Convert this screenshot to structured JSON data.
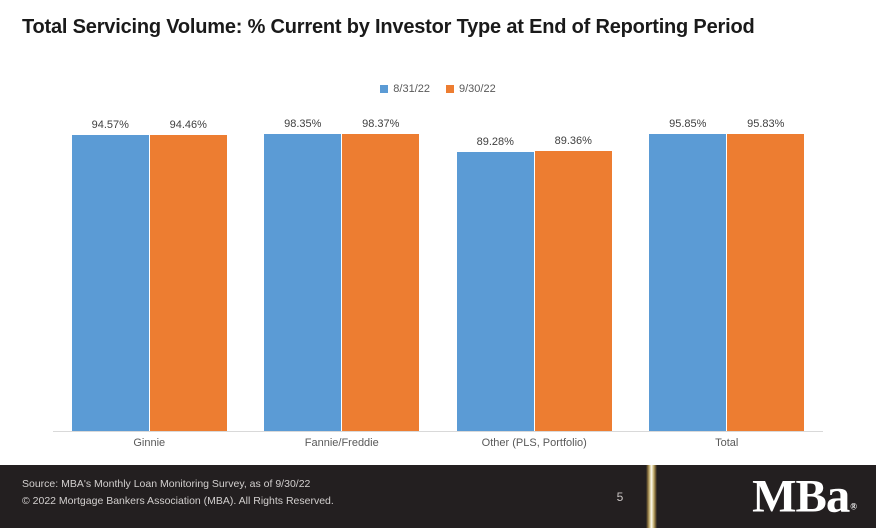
{
  "title": "Total Servicing Volume: % Current by Investor Type at End of Reporting Period",
  "chart_data": {
    "type": "bar",
    "title": "Total Servicing Volume: % Current by Investor Type at End of Reporting Period",
    "categories": [
      "Ginnie",
      "Fannie/Freddie",
      "Other (PLS, Portfolio)",
      "Total"
    ],
    "series": [
      {
        "name": "8/31/22",
        "color": "#5B9BD5",
        "values": [
          94.57,
          98.35,
          89.28,
          95.85
        ]
      },
      {
        "name": "9/30/22",
        "color": "#ED7D31",
        "values": [
          94.46,
          98.37,
          89.36,
          95.83
        ]
      }
    ],
    "data_labels": {
      "8/31/22": [
        "94.57%",
        "98.35%",
        "89.28%",
        "95.85%"
      ],
      "9/30/22": [
        "94.46%",
        "98.37%",
        "89.36%",
        "95.83%"
      ]
    },
    "value_suffix": "%",
    "xlabel": "",
    "ylabel": "",
    "ylim": [
      0,
      100
    ],
    "grid": false,
    "axes_visible": false,
    "legend_position": "top-center"
  },
  "colors": {
    "series_1_blue": "#5B9BD5",
    "series_2_orange": "#ED7D31",
    "footer_background": "#231F20",
    "divider_gold": "#8A713D",
    "divider_gold_light": "#C9B77A",
    "divider_center": "#FDFAF0"
  },
  "footer": {
    "source_line1": "Source: MBA's Monthly Loan Monitoring Survey, as of 9/30/22",
    "source_line2": "© 2022 Mortgage Bankers Association (MBA). All Rights Reserved.",
    "page_number": "5",
    "logo_text_mb": "MB",
    "logo_text_a": "a",
    "logo_registered": "®"
  }
}
